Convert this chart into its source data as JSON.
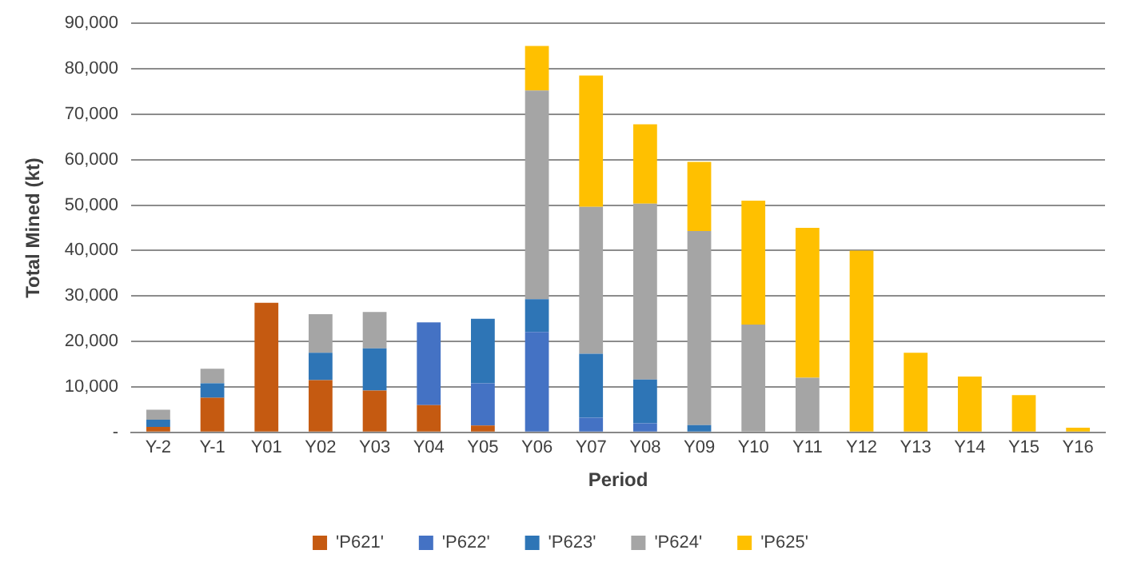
{
  "chart_data": {
    "type": "bar",
    "stacked": true,
    "xlabel": "Period",
    "ylabel": "Total Mined (kt)",
    "categories": [
      "Y-2",
      "Y-1",
      "Y01",
      "Y02",
      "Y03",
      "Y04",
      "Y05",
      "Y06",
      "Y07",
      "Y08",
      "Y09",
      "Y10",
      "Y11",
      "Y12",
      "Y13",
      "Y14",
      "Y15",
      "Y16"
    ],
    "series": [
      {
        "name": "'P621'",
        "color": "#c55a11",
        "values": [
          1200,
          7600,
          28500,
          11500,
          9200,
          6000,
          1500,
          0,
          0,
          0,
          0,
          0,
          0,
          0,
          0,
          0,
          0,
          0
        ]
      },
      {
        "name": "'P622'",
        "color": "#4472c4",
        "values": [
          0,
          0,
          0,
          0,
          0,
          18200,
          9300,
          22100,
          3200,
          2000,
          0,
          0,
          0,
          0,
          0,
          0,
          0,
          0
        ]
      },
      {
        "name": "'P623'",
        "color": "#2e75b6",
        "values": [
          1600,
          3200,
          0,
          6000,
          9300,
          0,
          14200,
          7200,
          14100,
          9600,
          1600,
          0,
          0,
          0,
          0,
          0,
          0,
          0
        ]
      },
      {
        "name": "'P624'",
        "color": "#a5a5a5",
        "values": [
          2200,
          3200,
          0,
          8500,
          8000,
          0,
          0,
          45900,
          32300,
          38700,
          42700,
          23700,
          12000,
          0,
          0,
          0,
          0,
          0
        ]
      },
      {
        "name": "'P625'",
        "color": "#ffc000",
        "values": [
          0,
          0,
          0,
          0,
          0,
          0,
          0,
          9800,
          28900,
          17500,
          15200,
          27300,
          33000,
          40000,
          17500,
          12300,
          8200,
          1000
        ]
      }
    ],
    "ylim": [
      0,
      90000
    ],
    "yticks": [
      {
        "value": 0,
        "label": "-"
      },
      {
        "value": 10000,
        "label": "10,000"
      },
      {
        "value": 20000,
        "label": "20,000"
      },
      {
        "value": 30000,
        "label": "30,000"
      },
      {
        "value": 40000,
        "label": "40,000"
      },
      {
        "value": 50000,
        "label": "50,000"
      },
      {
        "value": 60000,
        "label": "60,000"
      },
      {
        "value": 70000,
        "label": "70,000"
      },
      {
        "value": 80000,
        "label": "80,000"
      },
      {
        "value": 90000,
        "label": "90,000"
      }
    ],
    "grid": "y",
    "legend": "bottom"
  }
}
